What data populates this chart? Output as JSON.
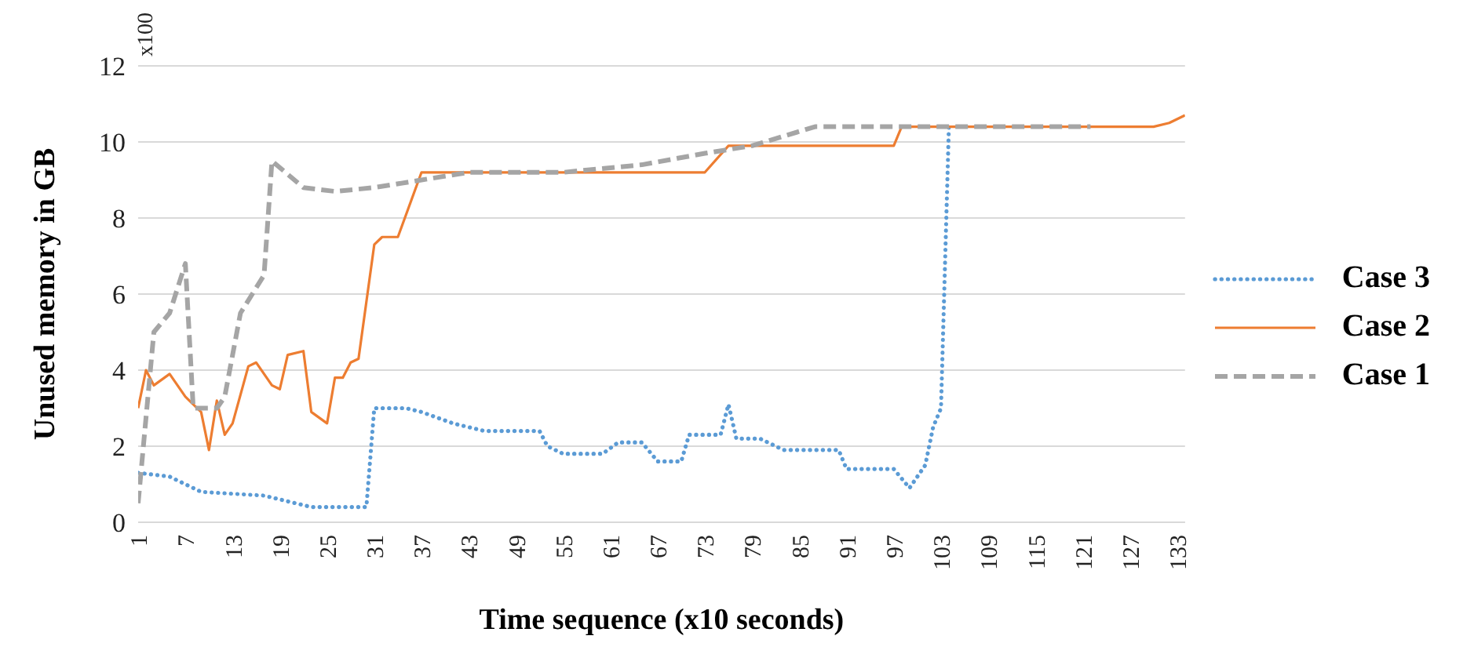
{
  "chart_data": {
    "type": "line",
    "xlabel": "Time sequence (x10 seconds)",
    "ylabel": "Unused memory in GB",
    "annotations": [
      "x100"
    ],
    "xlim": [
      1,
      134
    ],
    "xticks": [
      1,
      7,
      13,
      19,
      25,
      31,
      37,
      43,
      49,
      55,
      61,
      67,
      73,
      79,
      85,
      91,
      97,
      103,
      109,
      115,
      121,
      127,
      133
    ],
    "ylim": [
      0,
      12
    ],
    "yticks": [
      0,
      2,
      4,
      6,
      8,
      10,
      12
    ],
    "grid": "y",
    "legend": "right",
    "marker": "none",
    "series": [
      {
        "name": "Case 3",
        "color": "#5b9bd5",
        "line_style": "dotted",
        "x": [
          1,
          5,
          9,
          17,
          21,
          23,
          30,
          31,
          35,
          37,
          41,
          45,
          52,
          53,
          55,
          60,
          62,
          65,
          67,
          70,
          71,
          75,
          76,
          77,
          80,
          83,
          90,
          91,
          97,
          99,
          101,
          102,
          103,
          104
        ],
        "values": [
          1.3,
          1.2,
          0.8,
          0.7,
          0.5,
          0.4,
          0.4,
          3.0,
          3.0,
          2.9,
          2.6,
          2.4,
          2.4,
          2.0,
          1.8,
          1.8,
          2.1,
          2.1,
          1.6,
          1.6,
          2.3,
          2.3,
          3.1,
          2.2,
          2.2,
          1.9,
          1.9,
          1.4,
          1.4,
          0.9,
          1.5,
          2.5,
          3.0,
          10.4
        ]
      },
      {
        "name": "Case 2",
        "color": "#ed7d31",
        "line_style": "solid",
        "x": [
          1,
          2,
          3,
          5,
          7,
          9,
          10,
          11,
          12,
          13,
          15,
          16,
          18,
          19,
          20,
          22,
          23,
          25,
          26,
          27,
          28,
          29,
          31,
          32,
          34,
          37,
          73,
          76,
          97,
          98,
          130,
          132,
          134
        ],
        "values": [
          3.0,
          4.0,
          3.6,
          3.9,
          3.3,
          2.9,
          1.9,
          3.2,
          2.3,
          2.6,
          4.1,
          4.2,
          3.6,
          3.5,
          4.4,
          4.5,
          2.9,
          2.6,
          3.8,
          3.8,
          4.2,
          4.3,
          7.3,
          7.5,
          7.5,
          9.2,
          9.2,
          9.9,
          9.9,
          10.4,
          10.4,
          10.5,
          10.7
        ]
      },
      {
        "name": "Case 1",
        "color": "#a5a5a5",
        "line_style": "dashed",
        "x": [
          1,
          3,
          5,
          7,
          8,
          11,
          12,
          14,
          17,
          18,
          22,
          26,
          31,
          37,
          43,
          55,
          65,
          73,
          79,
          87,
          122
        ],
        "values": [
          0.5,
          5.0,
          5.5,
          6.8,
          3.0,
          3.0,
          3.3,
          5.5,
          6.5,
          9.5,
          8.8,
          8.7,
          8.8,
          9.0,
          9.2,
          9.2,
          9.4,
          9.7,
          9.9,
          10.4,
          10.4
        ]
      }
    ]
  }
}
